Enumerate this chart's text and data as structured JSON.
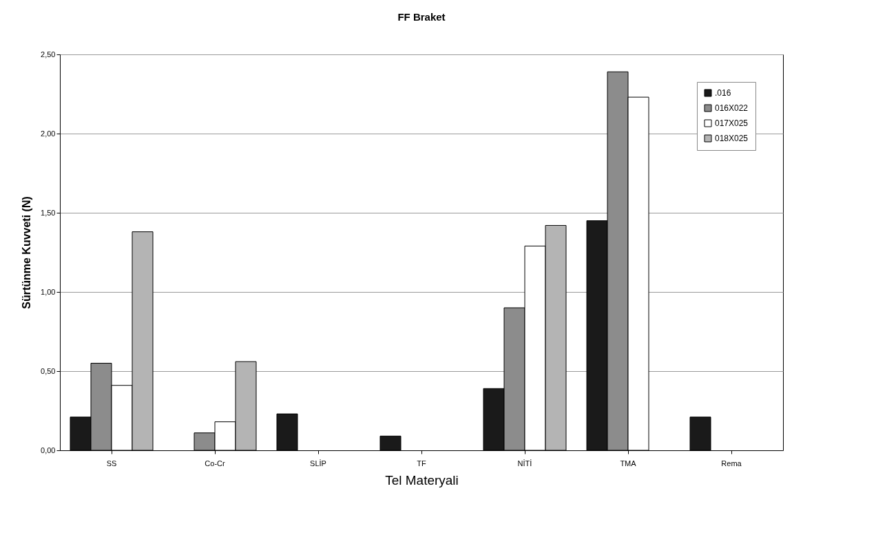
{
  "chart_data": {
    "type": "bar",
    "title": "FF Braket",
    "xlabel": "Tel Materyali",
    "ylabel": "Sürtünme Kuvveti (N)",
    "categories": [
      "SS",
      "Co-Cr",
      "SLİP",
      "TF",
      "NİTİ",
      "TMA",
      "Rema"
    ],
    "series": [
      {
        "name": ".016",
        "color": "#1a1a1a",
        "values": [
          0.21,
          null,
          0.23,
          0.09,
          0.39,
          1.45,
          0.21
        ]
      },
      {
        "name": "016X022",
        "color": "#8c8c8c",
        "values": [
          0.55,
          0.11,
          null,
          null,
          0.9,
          2.39,
          null
        ]
      },
      {
        "name": "017X025",
        "color": "#ffffff",
        "values": [
          0.41,
          0.18,
          null,
          null,
          1.29,
          2.23,
          null
        ]
      },
      {
        "name": "018X025",
        "color": "#b4b4b4",
        "values": [
          1.38,
          0.56,
          null,
          null,
          1.42,
          null,
          null
        ]
      }
    ],
    "ylim": [
      0,
      2.5
    ],
    "yticks": [
      {
        "value": 0,
        "label": "0,00"
      },
      {
        "value": 0.5,
        "label": "0,50"
      },
      {
        "value": 1,
        "label": "1,00"
      },
      {
        "value": 1.5,
        "label": "1,50"
      },
      {
        "value": 2,
        "label": "2,00"
      },
      {
        "value": 2.5,
        "label": "2,50"
      }
    ],
    "grid": "y",
    "legend": "top right"
  }
}
